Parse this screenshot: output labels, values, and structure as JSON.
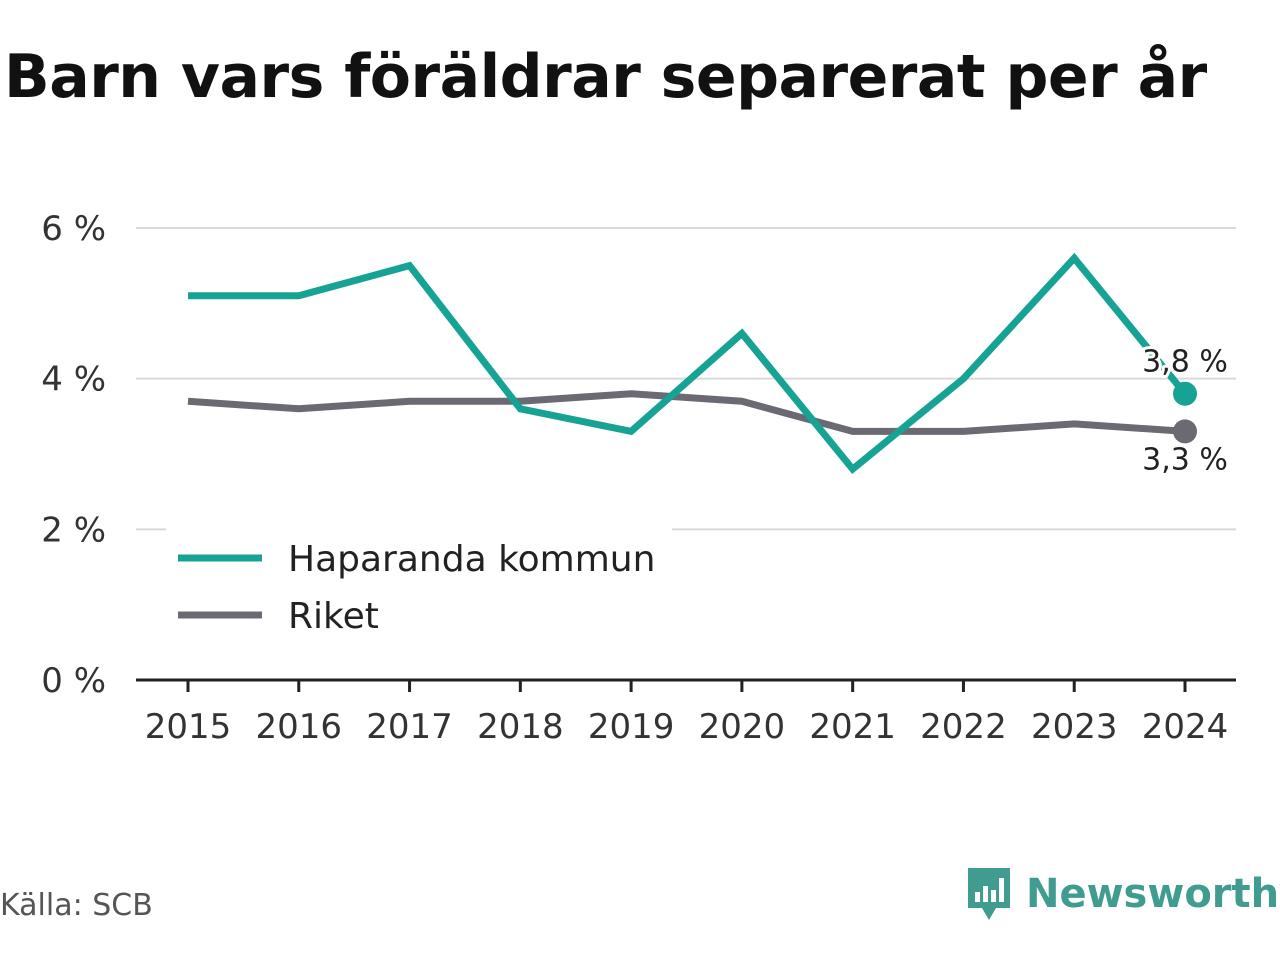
{
  "header": {
    "title": "Barn vars föräldrar separerat per år"
  },
  "footer": {
    "source": "Källa: SCB",
    "brand": "Newsworthy"
  },
  "icons": {
    "brand_logo": "newsworthy-logo-icon"
  },
  "colors": {
    "series_1": "#16a394",
    "series_2": "#6b6a72",
    "brand": "#3f9c8f",
    "grid": "#d9d9d9",
    "axis": "#222222"
  },
  "chart_data": {
    "type": "line",
    "title": "Barn vars föräldrar separerat per år",
    "xlabel": "",
    "ylabel": "",
    "x": [
      "2015",
      "2016",
      "2017",
      "2018",
      "2019",
      "2020",
      "2021",
      "2022",
      "2023",
      "2024"
    ],
    "ylim": [
      0,
      6
    ],
    "yticks": [
      0,
      2,
      4,
      6
    ],
    "ytick_labels": [
      "0 %",
      "2 %",
      "4 %",
      "6 %"
    ],
    "grid": true,
    "legend_position": "bottom-left",
    "series": [
      {
        "name": "Haparanda kommun",
        "values": [
          5.1,
          5.1,
          5.5,
          3.6,
          3.3,
          4.6,
          2.8,
          4.0,
          5.6,
          3.8
        ],
        "end_label": "3,8 %"
      },
      {
        "name": "Riket",
        "values": [
          3.7,
          3.6,
          3.7,
          3.7,
          3.8,
          3.7,
          3.3,
          3.3,
          3.4,
          3.3
        ],
        "end_label": "3,3 %"
      }
    ]
  }
}
